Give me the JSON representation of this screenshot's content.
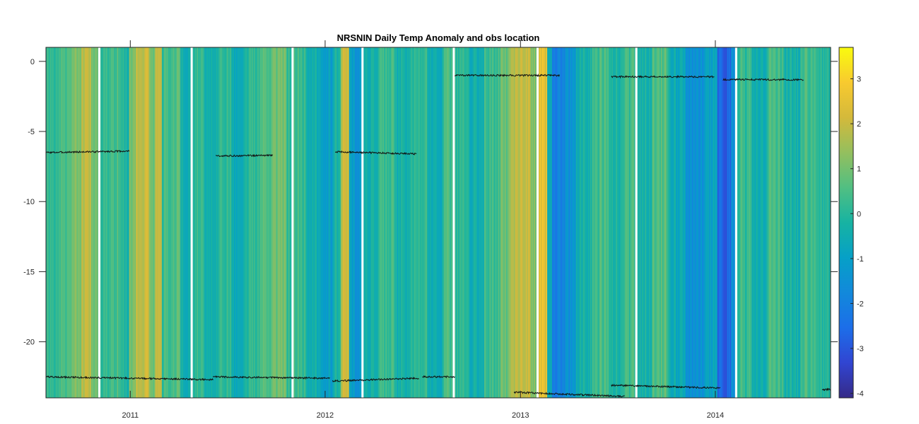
{
  "chart_data": {
    "type": "heatmap",
    "title": "NRSNIN Daily Temp Anomaly and obs location",
    "xlabel": "",
    "ylabel": "",
    "x_axis": {
      "type": "date",
      "range": [
        "2010-07-27",
        "2014-08-05"
      ],
      "ticks": [
        {
          "date": "2011-01-01",
          "label": "2011"
        },
        {
          "date": "2012-01-01",
          "label": "2012"
        },
        {
          "date": "2013-01-01",
          "label": "2013"
        },
        {
          "date": "2014-01-01",
          "label": "2014"
        }
      ]
    },
    "y_axis": {
      "range": [
        -24,
        1
      ],
      "ticks": [
        0,
        -5,
        -10,
        -15,
        -20
      ],
      "tick_labels": [
        "0",
        "-5",
        "-10",
        "-15",
        "-20"
      ]
    },
    "colorbar": {
      "colormap": "parula",
      "range": [
        -4.1,
        3.7
      ],
      "ticks": [
        3,
        2,
        1,
        0,
        -1,
        -2,
        -3,
        -4
      ],
      "tick_labels": [
        "3",
        "2",
        "1",
        "0",
        "-1",
        "-2",
        "-3",
        "-4"
      ],
      "placement": "right"
    },
    "grid": false,
    "anomaly_segments": [
      {
        "start": "2010-07-27",
        "end": "2010-08-20",
        "value": 0.2
      },
      {
        "start": "2010-08-20",
        "end": "2010-09-15",
        "value": 0.6
      },
      {
        "start": "2010-09-15",
        "end": "2010-10-01",
        "value": 1.1
      },
      {
        "start": "2010-10-01",
        "end": "2010-10-20",
        "value": 1.8
      },
      {
        "start": "2010-10-20",
        "end": "2010-11-03",
        "value": 0.8
      },
      {
        "start": "2010-11-06",
        "end": "2010-11-25",
        "value": 0.1
      },
      {
        "start": "2010-11-25",
        "end": "2010-12-15",
        "value": 0.5
      },
      {
        "start": "2010-12-15",
        "end": "2010-12-30",
        "value": -0.2
      },
      {
        "start": "2010-12-30",
        "end": "2011-01-12",
        "value": 1.2
      },
      {
        "start": "2011-01-12",
        "end": "2011-02-05",
        "value": 1.9
      },
      {
        "start": "2011-02-05",
        "end": "2011-02-15",
        "value": 0.9
      },
      {
        "start": "2011-02-15",
        "end": "2011-03-01",
        "value": 1.7
      },
      {
        "start": "2011-03-01",
        "end": "2011-03-20",
        "value": 0.3
      },
      {
        "start": "2011-03-20",
        "end": "2011-04-05",
        "value": 0.7
      },
      {
        "start": "2011-04-05",
        "end": "2011-04-25",
        "value": -0.3
      },
      {
        "start": "2011-04-28",
        "end": "2011-05-20",
        "value": 0.2
      },
      {
        "start": "2011-05-20",
        "end": "2011-06-15",
        "value": -0.4
      },
      {
        "start": "2011-06-15",
        "end": "2011-07-10",
        "value": 0.1
      },
      {
        "start": "2011-07-10",
        "end": "2011-08-05",
        "value": -0.6
      },
      {
        "start": "2011-08-05",
        "end": "2011-09-01",
        "value": 0.0
      },
      {
        "start": "2011-09-01",
        "end": "2011-09-25",
        "value": 0.5
      },
      {
        "start": "2011-09-25",
        "end": "2011-10-20",
        "value": 0.9
      },
      {
        "start": "2011-10-20",
        "end": "2011-10-31",
        "value": 0.2
      },
      {
        "start": "2011-11-03",
        "end": "2011-11-25",
        "value": 0.4
      },
      {
        "start": "2011-11-25",
        "end": "2011-12-20",
        "value": -0.5
      },
      {
        "start": "2011-12-20",
        "end": "2012-01-15",
        "value": -1.0
      },
      {
        "start": "2012-01-15",
        "end": "2012-01-30",
        "value": -0.2
      },
      {
        "start": "2012-01-30",
        "end": "2012-02-15",
        "value": 1.8
      },
      {
        "start": "2012-02-15",
        "end": "2012-02-25",
        "value": -0.8
      },
      {
        "start": "2012-02-25",
        "end": "2012-03-10",
        "value": -1.3
      },
      {
        "start": "2012-03-13",
        "end": "2012-04-10",
        "value": -0.2
      },
      {
        "start": "2012-04-10",
        "end": "2012-05-10",
        "value": 0.3
      },
      {
        "start": "2012-05-10",
        "end": "2012-06-10",
        "value": -0.3
      },
      {
        "start": "2012-06-10",
        "end": "2012-07-10",
        "value": 0.2
      },
      {
        "start": "2012-07-10",
        "end": "2012-08-10",
        "value": -0.5
      },
      {
        "start": "2012-08-10",
        "end": "2012-08-28",
        "value": 0.4
      },
      {
        "start": "2012-08-31",
        "end": "2012-09-25",
        "value": 0.1
      },
      {
        "start": "2012-09-25",
        "end": "2012-10-25",
        "value": -0.4
      },
      {
        "start": "2012-10-25",
        "end": "2012-11-25",
        "value": 0.3
      },
      {
        "start": "2012-11-25",
        "end": "2012-12-10",
        "value": 0.8
      },
      {
        "start": "2012-12-10",
        "end": "2012-12-28",
        "value": 1.7
      },
      {
        "start": "2012-12-28",
        "end": "2013-01-20",
        "value": 1.9
      },
      {
        "start": "2013-01-20",
        "end": "2013-02-01",
        "value": 1.2
      },
      {
        "start": "2013-02-04",
        "end": "2013-02-20",
        "value": 2.4
      },
      {
        "start": "2013-02-20",
        "end": "2013-03-01",
        "value": -0.4
      },
      {
        "start": "2013-03-01",
        "end": "2013-03-25",
        "value": -2.1
      },
      {
        "start": "2013-03-25",
        "end": "2013-04-15",
        "value": -1.5
      },
      {
        "start": "2013-04-15",
        "end": "2013-05-15",
        "value": -0.3
      },
      {
        "start": "2013-05-15",
        "end": "2013-06-15",
        "value": 0.4
      },
      {
        "start": "2013-06-15",
        "end": "2013-07-15",
        "value": -0.2
      },
      {
        "start": "2013-07-15",
        "end": "2013-08-05",
        "value": 0.3
      },
      {
        "start": "2013-08-08",
        "end": "2013-09-05",
        "value": -0.3
      },
      {
        "start": "2013-09-05",
        "end": "2013-10-05",
        "value": 0.6
      },
      {
        "start": "2013-10-05",
        "end": "2013-11-05",
        "value": -0.6
      },
      {
        "start": "2013-11-05",
        "end": "2013-12-10",
        "value": -1.4
      },
      {
        "start": "2013-12-10",
        "end": "2014-01-05",
        "value": -0.9
      },
      {
        "start": "2014-01-05",
        "end": "2014-01-30",
        "value": -2.7
      },
      {
        "start": "2014-01-30",
        "end": "2014-02-08",
        "value": -1.6
      },
      {
        "start": "2014-02-11",
        "end": "2014-03-10",
        "value": 0.2
      },
      {
        "start": "2014-03-10",
        "end": "2014-04-10",
        "value": -0.4
      },
      {
        "start": "2014-04-10",
        "end": "2014-05-10",
        "value": 0.5
      },
      {
        "start": "2014-05-10",
        "end": "2014-06-10",
        "value": -0.3
      },
      {
        "start": "2014-06-10",
        "end": "2014-07-10",
        "value": 0.4
      },
      {
        "start": "2014-07-10",
        "end": "2014-08-05",
        "value": 0.0
      }
    ],
    "data_gaps": [
      "2010-11-04",
      "2011-04-26",
      "2011-11-01",
      "2012-03-11",
      "2012-08-29",
      "2013-02-02",
      "2013-08-06",
      "2014-02-09"
    ],
    "obs_depth_tracks": [
      {
        "start": "2010-07-27",
        "end": "2010-12-30",
        "start_depth": -6.5,
        "end_depth": -6.4
      },
      {
        "start": "2011-06-10",
        "end": "2011-09-25",
        "start_depth": -6.75,
        "end_depth": -6.7
      },
      {
        "start": "2012-01-20",
        "end": "2012-06-20",
        "start_depth": -6.45,
        "end_depth": -6.6
      },
      {
        "start": "2012-08-31",
        "end": "2013-03-15",
        "start_depth": -1.0,
        "end_depth": -1.0
      },
      {
        "start": "2013-06-20",
        "end": "2013-12-30",
        "start_depth": -1.1,
        "end_depth": -1.1
      },
      {
        "start": "2014-01-15",
        "end": "2014-06-15",
        "start_depth": -1.3,
        "end_depth": -1.3
      },
      {
        "start": "2010-07-27",
        "end": "2011-06-05",
        "start_depth": -22.5,
        "end_depth": -22.7
      },
      {
        "start": "2011-06-05",
        "end": "2012-01-10",
        "start_depth": -22.5,
        "end_depth": -22.6
      },
      {
        "start": "2012-01-15",
        "end": "2012-06-25",
        "start_depth": -22.8,
        "end_depth": -22.6
      },
      {
        "start": "2012-07-01",
        "end": "2012-08-31",
        "start_depth": -22.5,
        "end_depth": -22.5
      },
      {
        "start": "2012-12-20",
        "end": "2013-07-15",
        "start_depth": -23.6,
        "end_depth": -23.9
      },
      {
        "start": "2013-06-20",
        "end": "2014-01-10",
        "start_depth": -23.1,
        "end_depth": -23.3
      },
      {
        "start": "2014-07-20",
        "end": "2014-08-05",
        "start_depth": -23.4,
        "end_depth": -23.4
      }
    ]
  }
}
